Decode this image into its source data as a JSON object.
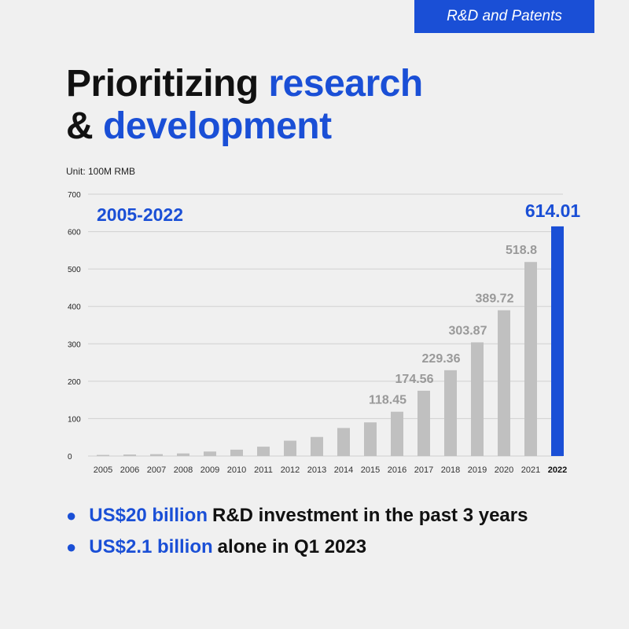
{
  "tag": "R&D and Patents",
  "headline": {
    "line1_plain": "Prioritizing ",
    "line1_accent": "research",
    "line2_plain": "& ",
    "line2_accent": "development"
  },
  "unit_label": "Unit: 100M RMB",
  "period_label": "2005-2022",
  "colors": {
    "accent": "#1a4fd6",
    "bar": "#c0c0c0",
    "text": "#111111",
    "grid": "#d0d0d0"
  },
  "chart_data": {
    "type": "bar",
    "categories": [
      "2005",
      "2006",
      "2007",
      "2008",
      "2009",
      "2010",
      "2011",
      "2012",
      "2013",
      "2014",
      "2015",
      "2016",
      "2017",
      "2018",
      "2019",
      "2020",
      "2021",
      "2022"
    ],
    "values": [
      3,
      4,
      5,
      7,
      12,
      17,
      25,
      41,
      51,
      75,
      90,
      118.45,
      174.56,
      229.36,
      303.87,
      389.72,
      518.8,
      614.01
    ],
    "data_labels": [
      "",
      "",
      "",
      "",
      "",
      "",
      "",
      "",
      "",
      "",
      "",
      "118.45",
      "174.56",
      "229.36",
      "303.87",
      "389.72",
      "518.8",
      "614.01"
    ],
    "highlight_category": "2022",
    "ylim": [
      0,
      700
    ],
    "yticks": [
      0,
      100,
      200,
      300,
      400,
      500,
      600,
      700
    ],
    "grid": true,
    "title": "",
    "xlabel": "",
    "ylabel": ""
  },
  "bullets": [
    {
      "highlight": "US$20 billion",
      "text": "R&D investment in the past 3 years"
    },
    {
      "highlight": "US$2.1 billion",
      "text": "alone in Q1 2023"
    }
  ]
}
